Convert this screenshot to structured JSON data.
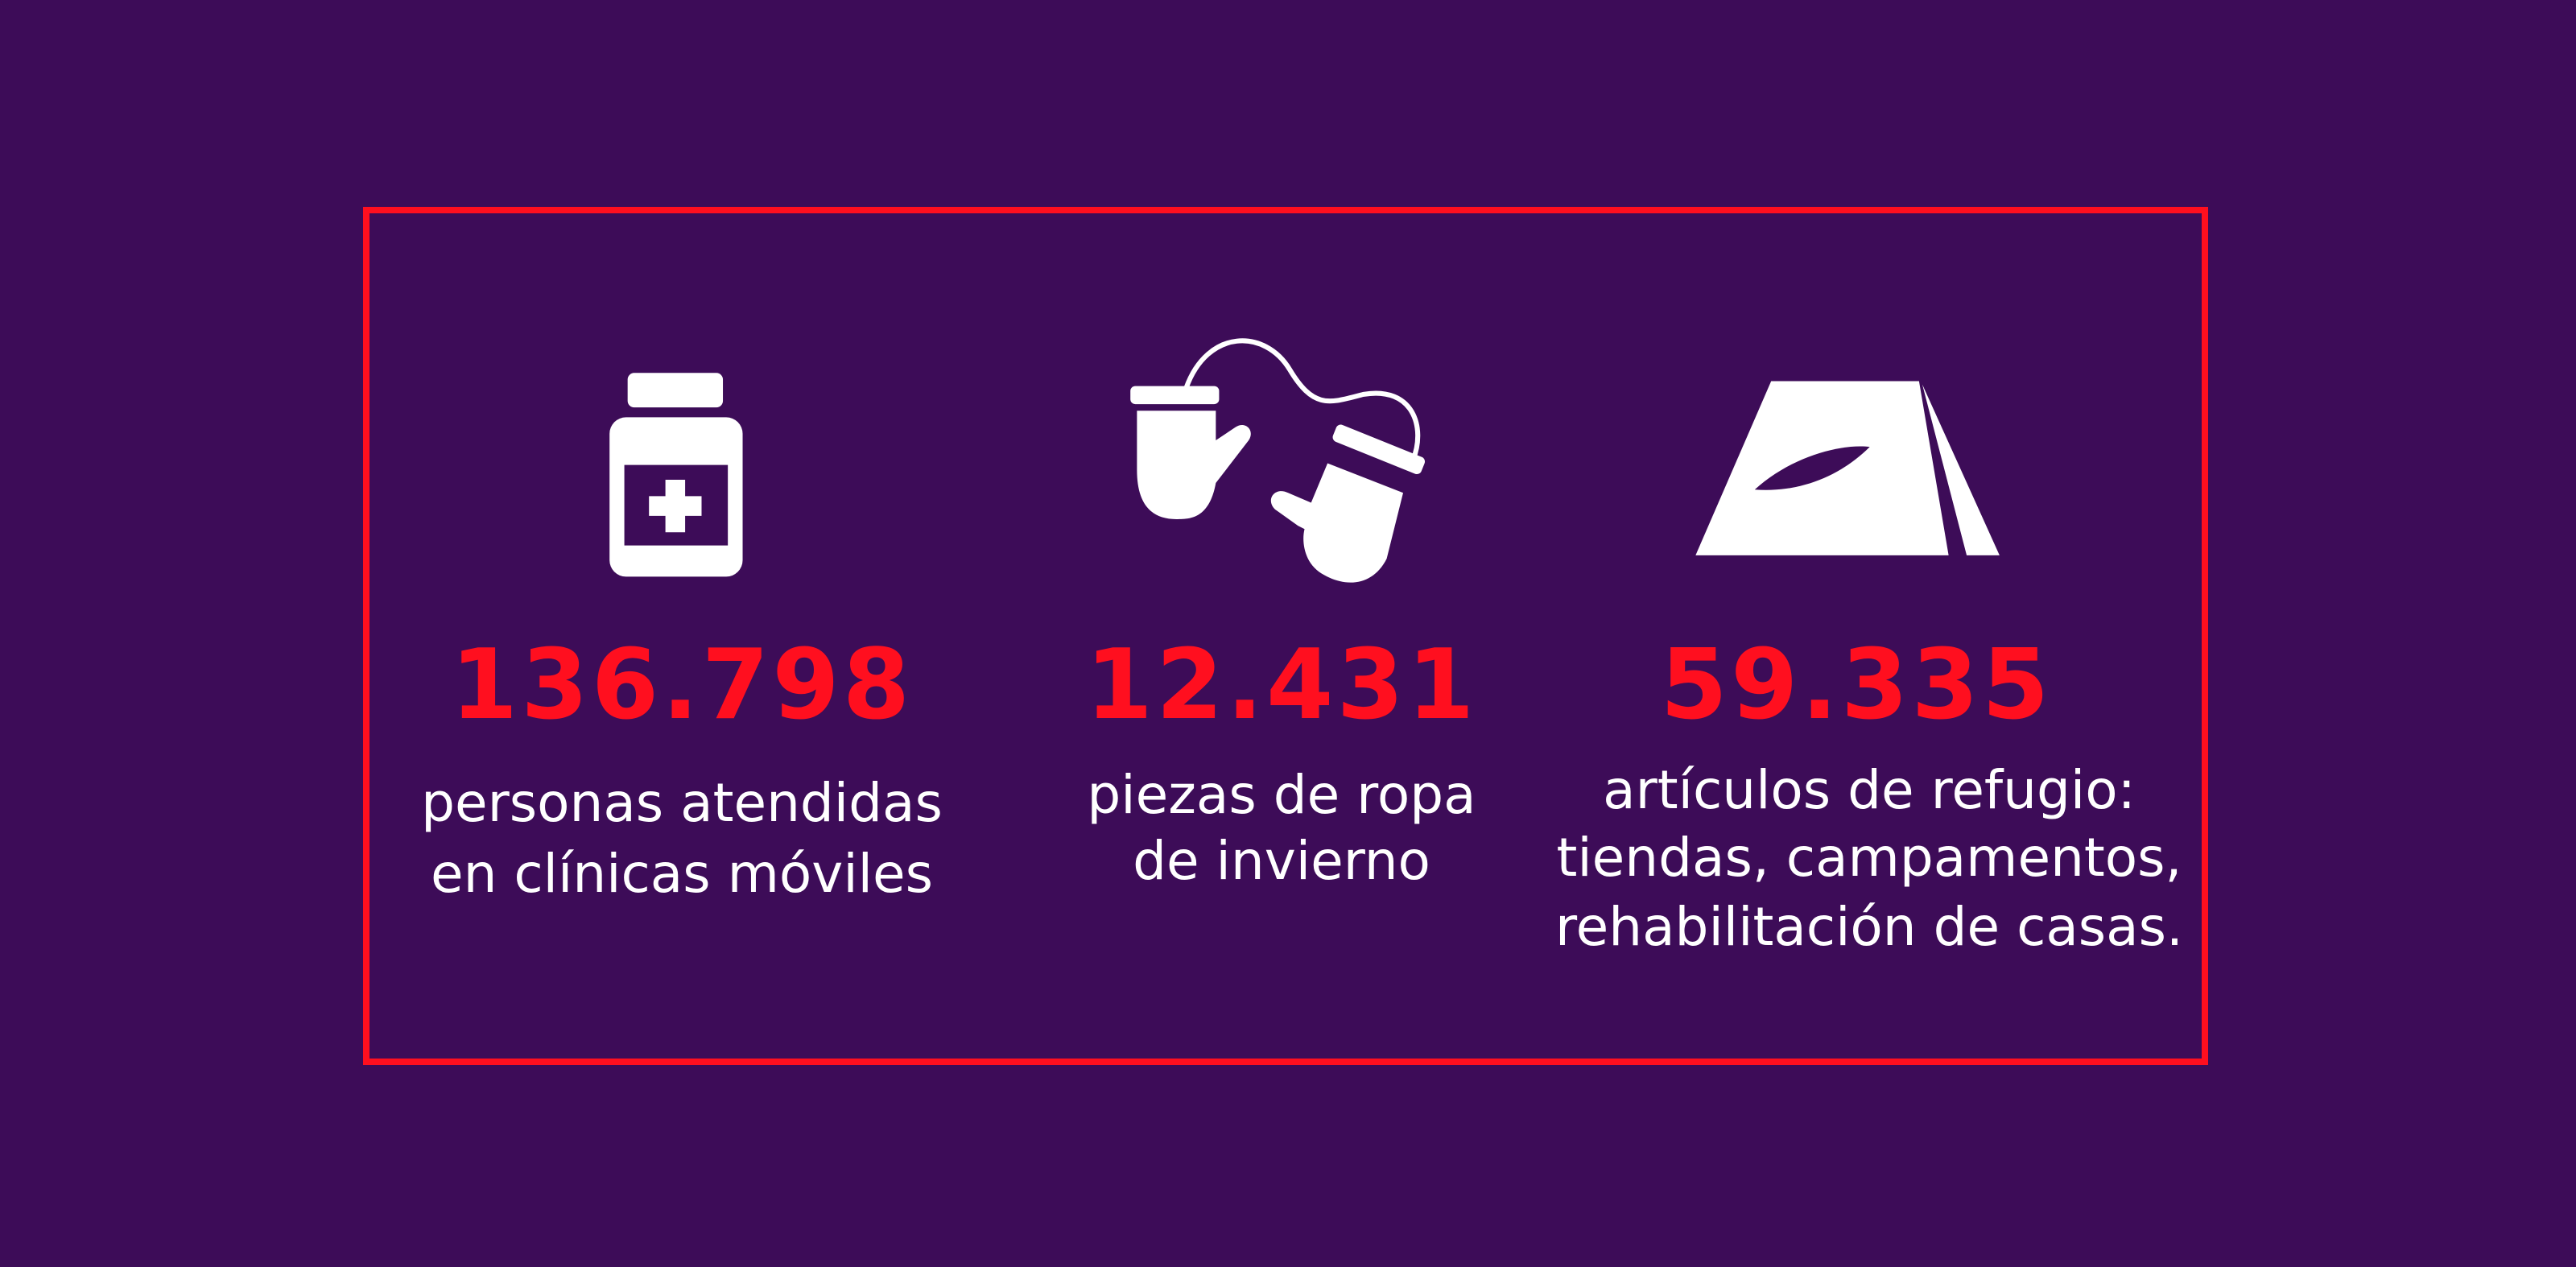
{
  "items": [
    {
      "number": "136.798",
      "label": [
        "personas atendidas",
        "en clínicas móviles"
      ]
    },
    {
      "number": "12.431",
      "label": [
        "piezas de ropa",
        "de invierno"
      ]
    },
    {
      "number": "59.335",
      "label": [
        "artículos de refugio:",
        "tiendas, campamentos,",
        "rehabilitación de casas."
      ]
    }
  ]
}
